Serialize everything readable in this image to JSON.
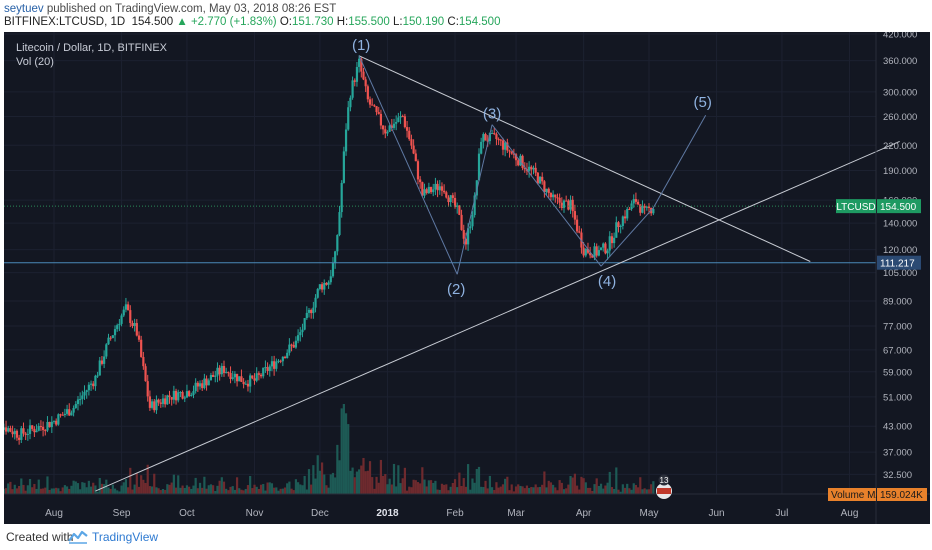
{
  "header": {
    "author": "seytuev",
    "published": "published on TradingView.com, May 03, 2018 08:26 EST",
    "symbol": "BITFINEX:LTCUSD, 1D",
    "last": "154.500",
    "change": "▲ +2.770 (+1.83%)",
    "o_label": "O:",
    "o_value": "151.730",
    "h_label": "H:",
    "h_value": "155.500",
    "l_label": "L:",
    "l_value": "150.190",
    "c_label": "C:",
    "c_value": "154.500"
  },
  "legend": {
    "title": "Litecoin / Dollar, 1D, BITFINEX",
    "volume": "Vol (20)"
  },
  "footer": {
    "created": "Created with",
    "brand": "TradingView"
  },
  "colors": {
    "up": "#26a69a",
    "down": "#ef5350",
    "bg": "#131722",
    "line": "#c7cbd3",
    "wave": "#5f79a3",
    "price_tag": "#1e9a62",
    "level_tag": "#2b4a73",
    "vol_tag": "#e8812b"
  },
  "chart_data": {
    "type": "candlestick",
    "x_labels": [
      "Aug",
      "Sep",
      "Oct",
      "Nov",
      "Dec",
      "2018",
      "Feb",
      "Mar",
      "Apr",
      "May",
      "Jun",
      "Jul",
      "Aug"
    ],
    "y_ticks": [
      "420.000",
      "360.000",
      "300.000",
      "260.000",
      "220.000",
      "190.000",
      "160.000",
      "140.000",
      "120.000",
      "105.000",
      "89.000",
      "77.000",
      "67.000",
      "59.000",
      "51.000",
      "43.000",
      "37.000",
      "32.500"
    ],
    "y_scale": "log",
    "ylim": [
      29,
      425
    ],
    "price_label": "LTCUSD",
    "price_value": "154.500",
    "level_value": "111.217",
    "volume_ma_label": "Volume MA",
    "volume_ma_value": "159.024K",
    "event_badge": "13",
    "annotations": [
      "(1)",
      "(2)",
      "(3)",
      "(4)",
      "(5)"
    ]
  }
}
